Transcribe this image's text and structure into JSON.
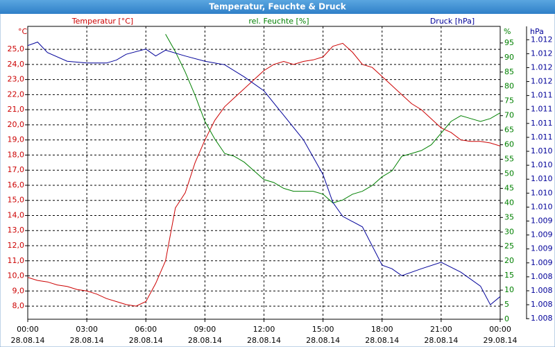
{
  "chart_data": {
    "type": "line",
    "title": "Temperatur, Feuchte & Druck",
    "axis_titles": {
      "y_unit": "°C",
      "y": "Temperatur [°C]",
      "y3": "rel. Feuchte [%]",
      "y3_unit": "%",
      "y2": "Druck [hPa]",
      "y2_unit": "hPa"
    },
    "xlim": [
      0,
      24
    ],
    "xticks": [
      {
        "value": 0,
        "label": [
          "00:00",
          "28.08.14"
        ]
      },
      {
        "value": 3,
        "label": [
          "03:00",
          "28.08.14"
        ]
      },
      {
        "value": 6,
        "label": [
          "06:00",
          "28.08.14"
        ]
      },
      {
        "value": 9,
        "label": [
          "09:00",
          "28.08.14"
        ]
      },
      {
        "value": 12,
        "label": [
          "12:00",
          "28.08.14"
        ]
      },
      {
        "value": 15,
        "label": [
          "15:00",
          "28.08.14"
        ]
      },
      {
        "value": 18,
        "label": [
          "18:00",
          "28.08.14"
        ]
      },
      {
        "value": 21,
        "label": [
          "21:00",
          "28.08.14"
        ]
      },
      {
        "value": 24,
        "label": [
          "00:00",
          "29.08.14"
        ]
      }
    ],
    "ylim": [
      7.13,
      26.52
    ],
    "yticks": [
      {
        "value": 8,
        "label": "8,0"
      },
      {
        "value": 9,
        "label": "9,0"
      },
      {
        "value": 10,
        "label": "10,0"
      },
      {
        "value": 11,
        "label": "11,0"
      },
      {
        "value": 12,
        "label": "12,0"
      },
      {
        "value": 13,
        "label": "13,0"
      },
      {
        "value": 14,
        "label": "14,0"
      },
      {
        "value": 15,
        "label": "15,0"
      },
      {
        "value": 16,
        "label": "16,0"
      },
      {
        "value": 17,
        "label": "17,0"
      },
      {
        "value": 18,
        "label": "18,0"
      },
      {
        "value": 19,
        "label": "19,0"
      },
      {
        "value": 20,
        "label": "20,0"
      },
      {
        "value": 21,
        "label": "21,0"
      },
      {
        "value": 22,
        "label": "22,0"
      },
      {
        "value": 23,
        "label": "23,0"
      },
      {
        "value": 24,
        "label": "24,0"
      },
      {
        "value": 25,
        "label": "25,0"
      }
    ],
    "y3lim": [
      0,
      100.7
    ],
    "y3ticks": [
      0,
      5,
      10,
      15,
      20,
      25,
      30,
      35,
      40,
      45,
      50,
      55,
      60,
      65,
      70,
      75,
      80,
      85,
      90,
      95
    ],
    "y2lim": [
      1007.59,
      1012.63
    ],
    "y2ticks": [
      {
        "value": 1012.4,
        "label": "1.012"
      },
      {
        "value": 1012.16,
        "label": "1.012"
      },
      {
        "value": 1011.92,
        "label": "1.012"
      },
      {
        "value": 1011.68,
        "label": "1.012"
      },
      {
        "value": 1011.44,
        "label": "1.011"
      },
      {
        "value": 1011.2,
        "label": "1.011"
      },
      {
        "value": 1010.96,
        "label": "1.011"
      },
      {
        "value": 1010.72,
        "label": "1.011"
      },
      {
        "value": 1010.48,
        "label": "1.010"
      },
      {
        "value": 1010.24,
        "label": "1.010"
      },
      {
        "value": 1010.0,
        "label": "1.010"
      },
      {
        "value": 1009.76,
        "label": "1.010"
      },
      {
        "value": 1009.52,
        "label": "1.010"
      },
      {
        "value": 1009.28,
        "label": "1.009"
      },
      {
        "value": 1009.04,
        "label": "1.009"
      },
      {
        "value": 1008.8,
        "label": "1.009"
      },
      {
        "value": 1008.56,
        "label": "1.009"
      },
      {
        "value": 1008.32,
        "label": "1.008"
      },
      {
        "value": 1008.08,
        "label": "1.008"
      },
      {
        "value": 1007.84,
        "label": "1.008"
      },
      {
        "value": 1007.6,
        "label": "1.008"
      }
    ],
    "grid": true,
    "series": [
      {
        "name": "Temperatur",
        "color": "#cc0000",
        "axis": "y",
        "x": [
          0,
          0.5,
          1,
          1.5,
          2,
          2.5,
          3,
          3.5,
          4,
          4.5,
          5,
          5.5,
          6,
          6.5,
          7,
          7.5,
          8,
          8.5,
          9,
          9.5,
          10,
          10.5,
          11,
          11.5,
          12,
          12.5,
          13,
          13.5,
          14,
          14.5,
          15,
          15.5,
          16,
          16.5,
          17,
          17.5,
          18,
          18.5,
          19,
          19.5,
          20,
          20.5,
          21,
          21.5,
          22,
          22.5,
          23,
          23.5,
          24
        ],
        "values": [
          9.9,
          9.7,
          9.6,
          9.4,
          9.3,
          9.1,
          9.0,
          8.8,
          8.5,
          8.3,
          8.1,
          8.0,
          8.3,
          9.5,
          11.0,
          14.5,
          15.5,
          17.5,
          19.0,
          20.3,
          21.2,
          21.8,
          22.4,
          23.0,
          23.6,
          24.0,
          24.2,
          24.0,
          24.2,
          24.3,
          24.5,
          25.2,
          25.4,
          24.8,
          24.0,
          23.8,
          23.2,
          22.6,
          22.0,
          21.4,
          21.0,
          20.4,
          19.8,
          19.5,
          19.0,
          18.9,
          18.9,
          18.8,
          18.6
        ]
      },
      {
        "name": "rel. Feuchte",
        "color": "#008000",
        "axis": "y3",
        "x": [
          0,
          0.5,
          1,
          1.5,
          2,
          2.5,
          3,
          3.5,
          4,
          4.5,
          5,
          5.5,
          6,
          6.5,
          7,
          7.5,
          8,
          8.5,
          9,
          9.5,
          10,
          10.5,
          11,
          11.5,
          12,
          12.5,
          13,
          13.5,
          14,
          14.5,
          15,
          15.5,
          16,
          16.5,
          17,
          17.5,
          18,
          18.5,
          19,
          19.5,
          20,
          20.5,
          21,
          21.5,
          22,
          22.5,
          23,
          23.5,
          24
        ],
        "values": [
          null,
          null,
          null,
          null,
          null,
          null,
          null,
          null,
          null,
          null,
          null,
          null,
          null,
          null,
          98,
          92,
          85,
          77,
          68,
          62,
          57,
          56,
          54,
          51,
          48,
          47,
          45,
          44,
          44,
          44,
          43,
          40,
          41,
          43,
          44,
          46,
          49,
          51,
          56,
          57,
          58,
          60,
          64,
          68,
          70,
          69,
          68,
          69,
          71
        ]
      },
      {
        "name": "Druck",
        "color": "#000099",
        "axis": "y2",
        "x": [
          0,
          0.5,
          1,
          2,
          3,
          4,
          4.5,
          5,
          6,
          6.5,
          7,
          8,
          9,
          10,
          11,
          12,
          13,
          14,
          15,
          15.5,
          16,
          17,
          18,
          18.5,
          19,
          20,
          21,
          22,
          23,
          23.5,
          24
        ],
        "values": [
          1012.3,
          1012.36,
          1012.18,
          1012.03,
          1012.0,
          1012.0,
          1012.05,
          1012.15,
          1012.24,
          1012.12,
          1012.22,
          1012.12,
          1012.03,
          1011.97,
          1011.76,
          1011.52,
          1011.1,
          1010.68,
          1010.08,
          1009.6,
          1009.36,
          1009.18,
          1008.52,
          1008.46,
          1008.34,
          1008.46,
          1008.57,
          1008.4,
          1008.16,
          1007.84,
          1007.98
        ]
      }
    ]
  }
}
